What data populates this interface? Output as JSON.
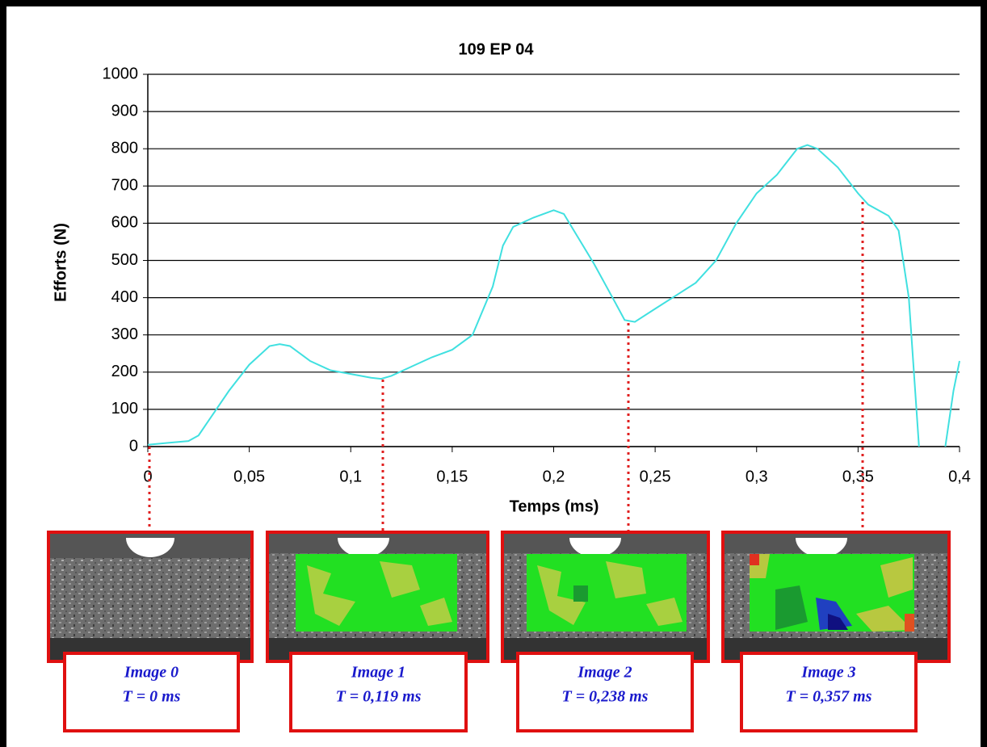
{
  "chart_data": {
    "type": "line",
    "title": "109 EP 04",
    "x_label": "Temps  (ms)",
    "y_label": "Efforts  (N)",
    "x": [
      0,
      0.01,
      0.02,
      0.025,
      0.03,
      0.04,
      0.05,
      0.06,
      0.065,
      0.07,
      0.08,
      0.09,
      0.1,
      0.11,
      0.115,
      0.12,
      0.13,
      0.14,
      0.15,
      0.16,
      0.17,
      0.175,
      0.18,
      0.19,
      0.2,
      0.205,
      0.21,
      0.22,
      0.23,
      0.235,
      0.24,
      0.25,
      0.26,
      0.27,
      0.28,
      0.29,
      0.3,
      0.31,
      0.32,
      0.325,
      0.33,
      0.34,
      0.35,
      0.355,
      0.365,
      0.37,
      0.375,
      0.38,
      0.385,
      0.393,
      0.397,
      0.4
    ],
    "series": [
      {
        "color": "#40e0e0",
        "values": [
          5,
          10,
          15,
          30,
          70,
          150,
          220,
          270,
          275,
          270,
          230,
          205,
          195,
          185,
          182,
          190,
          215,
          240,
          260,
          300,
          430,
          540,
          590,
          615,
          635,
          625,
          580,
          490,
          390,
          340,
          335,
          370,
          405,
          440,
          500,
          600,
          680,
          730,
          800,
          810,
          800,
          750,
          680,
          650,
          620,
          580,
          400,
          0,
          null,
          0,
          150,
          230
        ]
      }
    ],
    "xlim": [
      0,
      0.4
    ],
    "xticks": [
      0,
      {
        "value": 0.05,
        "label": "0,05"
      },
      {
        "value": 0.1,
        "label": "0,1"
      },
      {
        "value": 0.15,
        "label": "0,15"
      },
      {
        "value": 0.2,
        "label": "0,2"
      },
      {
        "value": 0.25,
        "label": "0,25"
      },
      {
        "value": 0.3,
        "label": "0,3"
      },
      {
        "value": 0.35,
        "label": "0,35"
      },
      {
        "value": 0.4,
        "label": "0,4"
      }
    ],
    "ylim": [
      0,
      1000
    ],
    "yticks": [
      0,
      100,
      200,
      300,
      400,
      500,
      600,
      700,
      800,
      900,
      1000
    ],
    "grid": true,
    "annotations": [
      {
        "image": "Image 0",
        "time": "T = 0 ms"
      },
      {
        "image": "Image 1",
        "time": "T = 0,119 ms"
      },
      {
        "image": "Image 2",
        "time": "T = 0,238 ms"
      },
      {
        "image": "Image 3",
        "time": "T = 0,357 ms"
      }
    ]
  }
}
